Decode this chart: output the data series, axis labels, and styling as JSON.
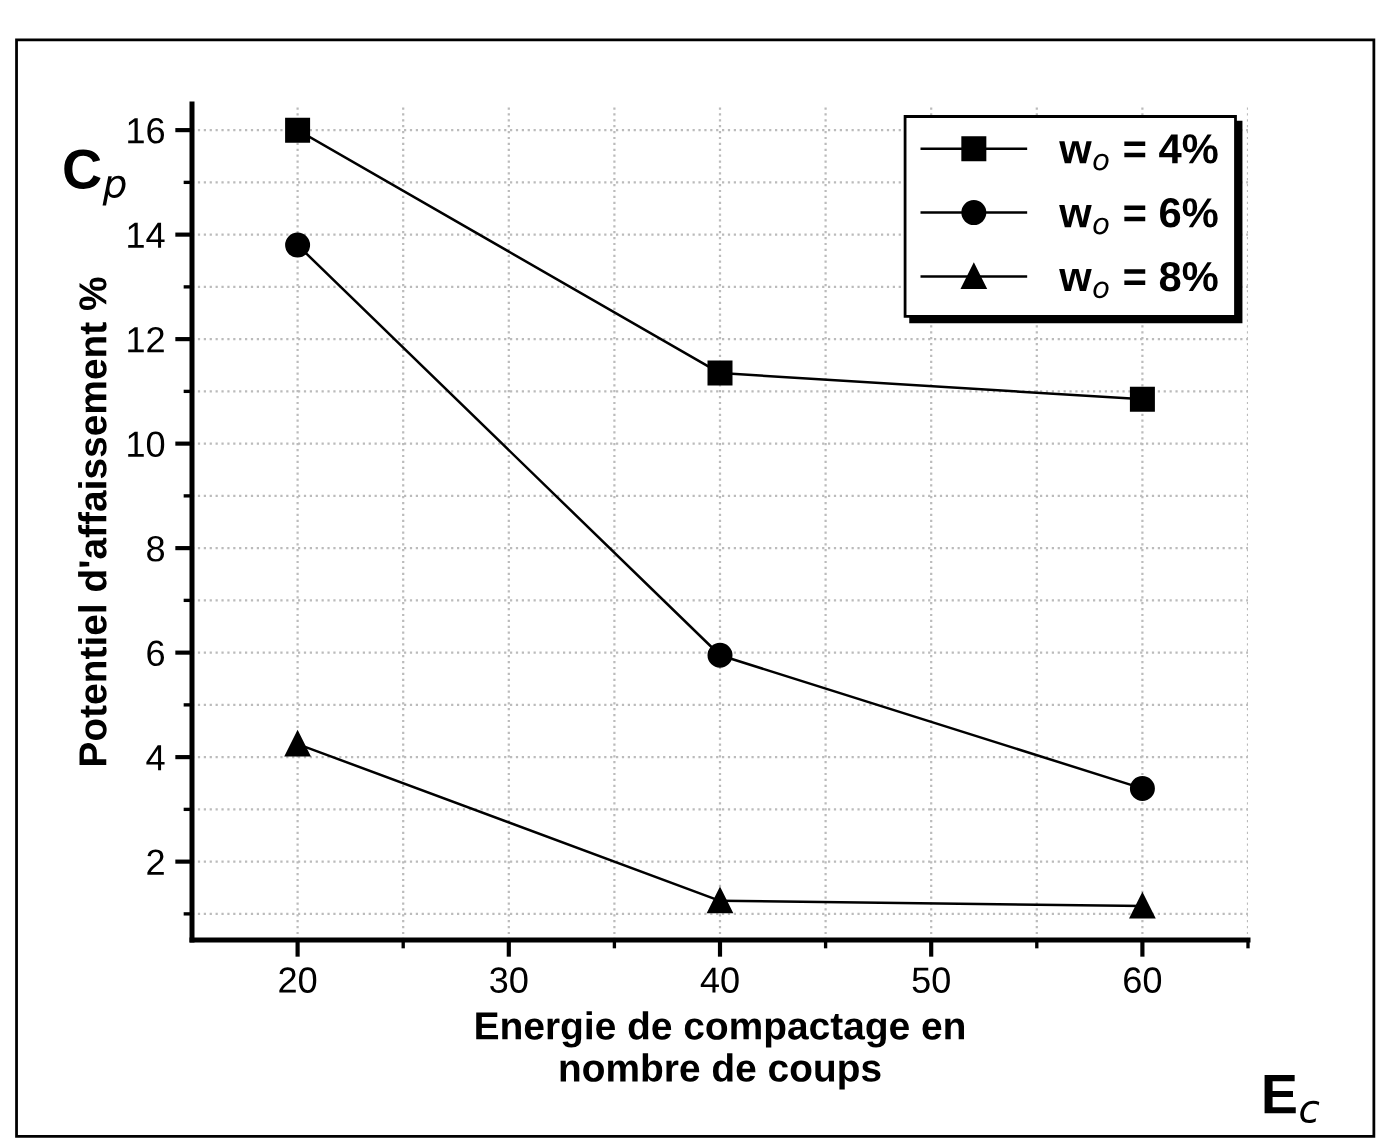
{
  "chart_data": {
    "type": "line",
    "xlabel": "Energie de compactage en\nnombre de coups",
    "ylabel": "Potentiel d'affaissement %",
    "annotations": [
      "C$_{p}$",
      "E$_{c}$"
    ],
    "x": [
      20,
      40,
      60
    ],
    "series": [
      {
        "name": "w$_{o}$ = 4%",
        "color": "#000000",
        "marker": "square",
        "values": [
          16.0,
          11.35,
          10.85
        ]
      },
      {
        "name": "w$_{o}$ = 6%",
        "color": "#000000",
        "marker": "circle",
        "values": [
          13.8,
          5.95,
          3.4
        ]
      },
      {
        "name": "w$_{o}$ = 8%",
        "color": "#000000",
        "marker": "triangle",
        "values": [
          4.25,
          1.25,
          1.15
        ]
      }
    ],
    "xlim": [
      15,
      65
    ],
    "xticks": [
      20,
      30,
      40,
      50,
      60
    ],
    "ylim": [
      0.5,
      16.5
    ],
    "yticks": [
      2,
      4,
      6,
      8,
      10,
      12,
      14,
      16
    ],
    "grid": true,
    "legend": "top right",
    "line_style": "solid"
  }
}
